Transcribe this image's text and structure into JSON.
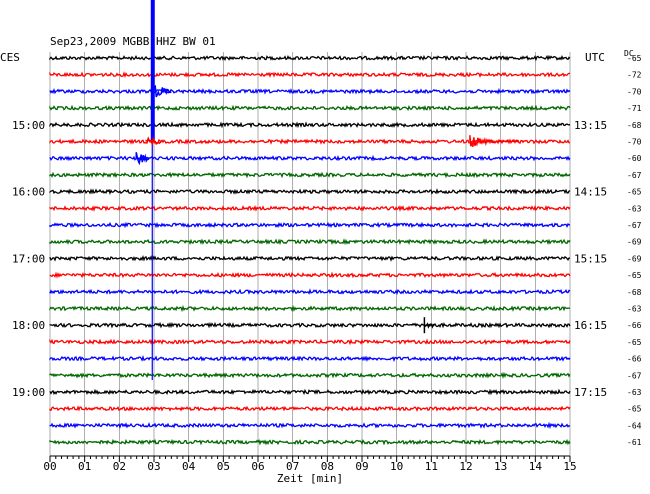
{
  "chart_data": {
    "type": "line",
    "title": "Sep23,2009   MGBB HHZ BW 01",
    "xlabel": "Zeit [min]",
    "x_ticks": [
      "00",
      "01",
      "02",
      "03",
      "04",
      "05",
      "06",
      "07",
      "08",
      "09",
      "10",
      "11",
      "12",
      "13",
      "14",
      "15"
    ],
    "xlim": [
      0,
      15
    ],
    "left_timezone": "CES",
    "right_timezone": "UTC",
    "dc_label": "DC",
    "left_hour_labels": [
      {
        "row": 4,
        "label": "15:00"
      },
      {
        "row": 8,
        "label": "16:00"
      },
      {
        "row": 12,
        "label": "17:00"
      },
      {
        "row": 16,
        "label": "18:00"
      },
      {
        "row": 20,
        "label": "19:00"
      }
    ],
    "right_hour_labels": [
      {
        "row": 4,
        "label": "13:15"
      },
      {
        "row": 8,
        "label": "14:15"
      },
      {
        "row": 12,
        "label": "15:15"
      },
      {
        "row": 16,
        "label": "16:15"
      },
      {
        "row": 20,
        "label": "17:15"
      }
    ],
    "dc_offsets": [
      "-65",
      "-72",
      "-70",
      "-71",
      "-68",
      "-70",
      "-60",
      "-67",
      "-65",
      "-63",
      "-67",
      "-69",
      "-69",
      "-65",
      "-68",
      "-63",
      "-66",
      "-65",
      "-66",
      "-67",
      "-63",
      "-65",
      "-64",
      "-61"
    ],
    "trace_colors": [
      "#000000",
      "#ff0000",
      "#0000ff",
      "#006600"
    ],
    "num_traces": 24,
    "events": [
      {
        "trace": 0,
        "minute": 2.95,
        "color": "#0000ff",
        "description_kind": "large-spike"
      },
      {
        "trace": 5,
        "minute": 12.4,
        "color": "#ff0000",
        "description_kind": "burst"
      },
      {
        "trace": 16,
        "minute": 10.8,
        "color": "#000000",
        "description_kind": "spike"
      }
    ]
  }
}
